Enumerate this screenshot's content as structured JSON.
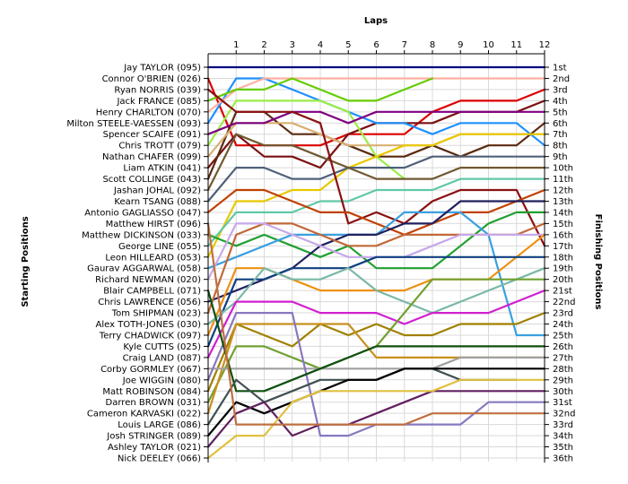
{
  "chart_data": {
    "type": "line",
    "title": "",
    "x_axis_title": "Laps",
    "left_axis_title": "Starting Positions",
    "right_axis_title": "Finishing Positions",
    "x": [
      1,
      2,
      3,
      4,
      5,
      6,
      7,
      8,
      9,
      10,
      11,
      12
    ],
    "x_range": [
      0,
      12
    ],
    "y_range": [
      1,
      36
    ],
    "y_inverted": true,
    "grid": true,
    "starting_names": [
      "Jay TAYLOR (095)",
      "Connor O'BRIEN (026)",
      "Ryan NORRIS (039)",
      "Jack FRANCE (085)",
      "Henry CHARLTON (070)",
      "Milton STEELE-VAESSEN (093)",
      "Spencer SCAIFE (091)",
      "Chris TROTT (079)",
      "Nathan CHAFER (099)",
      "Liam ATKIN (041)",
      "Scott COLLINGE (043)",
      "Jashan JOHAL (092)",
      "Kearn TSANG (088)",
      "Antonio GAGLIASSO (047)",
      "Matthew HIRST (096)",
      "Matthew DICKINSON (033)",
      "George LINE (055)",
      "Leon HILLEARD (053)",
      "Gaurav AGGARWAL (058)",
      "Richard NEWMAN (020)",
      "Blair CAMPBELL (071)",
      "Chris LAWRENCE (056)",
      "Tom SHIPMAN (023)",
      "Alex TOTH-JONES (030)",
      "Terry CHADWICK (097)",
      "Kyle CUTTS (025)",
      "Craig LAND (087)",
      "Corby GORMLEY (067)",
      "Joe WIGGIN (080)",
      "Matt ROBINSON (084)",
      "Darren BROWN (031)",
      "Cameron KARVASKI (022)",
      "Louis LARGE (086)",
      "Josh STRINGER (089)",
      "Ashley TAYLOR (021)",
      "Nick DEELEY (066)"
    ],
    "finishing_labels": [
      "1st",
      "2nd",
      "3rd",
      "4th",
      "5th",
      "6th",
      "7th",
      "8th",
      "9th",
      "10th",
      "11th",
      "12th",
      "13th",
      "14th",
      "15th",
      "16th",
      "17th",
      "18th",
      "19th",
      "20th",
      "21st",
      "22nd",
      "23rd",
      "24th",
      "25th",
      "26th",
      "27th",
      "28th",
      "29th",
      "30th",
      "31st",
      "32nd",
      "33rd",
      "34th",
      "35th",
      "36th"
    ],
    "series": [
      {
        "color": "#000080",
        "start": 1,
        "positions": [
          1,
          1,
          1,
          1,
          1,
          1,
          1,
          1,
          1,
          1,
          1,
          1
        ]
      },
      {
        "color": "#dc0000",
        "start": 2,
        "positions": [
          8,
          8,
          8,
          8,
          7,
          7,
          7,
          5,
          4,
          4,
          4,
          3
        ]
      },
      {
        "color": "#7a1010",
        "start": 10,
        "positions": [
          7,
          9,
          9,
          10,
          7,
          6,
          6,
          6,
          5,
          5,
          5,
          4
        ]
      },
      {
        "color": "#5a2a10",
        "start": 11,
        "positions": [
          5,
          5,
          7,
          7,
          8,
          9,
          9,
          8,
          9,
          8,
          8,
          6
        ]
      },
      {
        "color": "#1e90ff",
        "start": 6,
        "positions": [
          2,
          2,
          3,
          4,
          5,
          6,
          6,
          7,
          6,
          6,
          6,
          8
        ]
      },
      {
        "color": "#ffb0a0",
        "start": 5,
        "positions": [
          3,
          2,
          2,
          2,
          2,
          2,
          2,
          2,
          2,
          2,
          2,
          2
        ]
      },
      {
        "color": "#66cc00",
        "start": 4,
        "positions": [
          3,
          3,
          2,
          3,
          4,
          4,
          3,
          2,
          null,
          null,
          null,
          null
        ]
      },
      {
        "color": "#99ee44",
        "start": 8,
        "positions": [
          4,
          4,
          4,
          4,
          5,
          9,
          11,
          null,
          null,
          null,
          null,
          null
        ]
      },
      {
        "color": "#d8b070",
        "start": 9,
        "positions": [
          6,
          6,
          6,
          7,
          8,
          8,
          8,
          8,
          7,
          7,
          7,
          7
        ]
      },
      {
        "color": "#e8c800",
        "start": 18,
        "positions": [
          13,
          13,
          12,
          12,
          10,
          9,
          8,
          8,
          7,
          7,
          7,
          7
        ]
      },
      {
        "color": "#50607a",
        "start": 13,
        "positions": [
          10,
          10,
          11,
          11,
          10,
          10,
          10,
          9,
          9,
          9,
          9,
          9
        ]
      },
      {
        "color": "#800080",
        "start": 7,
        "positions": [
          6,
          6,
          5,
          5,
          6,
          5,
          5,
          5,
          5,
          5,
          5,
          5
        ]
      },
      {
        "color": "#705830",
        "start": 12,
        "positions": [
          7,
          8,
          8,
          9,
          10,
          11,
          11,
          11,
          10,
          10,
          10,
          10
        ]
      },
      {
        "color": "#60c8a8",
        "start": 17,
        "positions": [
          14,
          14,
          14,
          13,
          13,
          12,
          12,
          12,
          11,
          11,
          11,
          11
        ]
      },
      {
        "color": "#8a1010",
        "start": 3,
        "positions": [
          5,
          5,
          5,
          6,
          15,
          14,
          15,
          13,
          12,
          12,
          12,
          17
        ]
      },
      {
        "color": "#c04000",
        "start": 14,
        "positions": [
          12,
          12,
          13,
          14,
          14,
          15,
          16,
          15,
          14,
          14,
          13,
          12
        ]
      },
      {
        "color": "#20a030",
        "start": 16,
        "positions": [
          17,
          16,
          17,
          18,
          17,
          19,
          19,
          19,
          17,
          15,
          14,
          14
        ]
      },
      {
        "color": "#3aa0e0",
        "start": 19,
        "positions": [
          18,
          17,
          16,
          16,
          16,
          16,
          14,
          14,
          14,
          16,
          25,
          25
        ]
      },
      {
        "color": "#202060",
        "start": 22,
        "positions": [
          21,
          20,
          19,
          17,
          16,
          16,
          15,
          15,
          13,
          13,
          13,
          13
        ]
      },
      {
        "color": "#c06838",
        "start": 23,
        "positions": [
          16,
          15,
          15,
          16,
          17,
          17,
          16,
          16,
          16,
          16,
          16,
          15
        ]
      },
      {
        "color": "#c8a8e8",
        "start": 20,
        "positions": [
          15,
          15,
          16,
          17,
          18,
          18,
          18,
          17,
          16,
          16,
          16,
          16
        ]
      },
      {
        "color": "#ee9010",
        "start": 25,
        "positions": [
          19,
          19,
          20,
          21,
          21,
          21,
          21,
          20,
          20,
          20,
          18,
          16
        ]
      },
      {
        "color": "#104080",
        "start": 26,
        "positions": [
          20,
          20,
          19,
          19,
          19,
          18,
          18,
          18,
          18,
          18,
          18,
          18
        ]
      },
      {
        "color": "#7ab8a8",
        "start": 24,
        "positions": [
          22,
          19,
          20,
          20,
          19,
          21,
          22,
          23,
          22,
          21,
          20,
          19
        ]
      },
      {
        "color": "#d020d0",
        "start": 27,
        "positions": [
          22,
          22,
          22,
          23,
          23,
          23,
          24,
          23,
          23,
          23,
          22,
          21
        ]
      },
      {
        "color": "#70a030",
        "start": 31,
        "positions": [
          26,
          26,
          27,
          28,
          27,
          26,
          23,
          20,
          20,
          20,
          20,
          20
        ]
      },
      {
        "color": "#a08000",
        "start": 30,
        "positions": [
          24,
          25,
          26,
          24,
          25,
          24,
          25,
          25,
          24,
          24,
          24,
          23
        ]
      },
      {
        "color": "#c89020",
        "start": 32,
        "positions": [
          24,
          24,
          24,
          24,
          24,
          27,
          27,
          27,
          27,
          27,
          27,
          27
        ]
      },
      {
        "color": "#a0a0a0",
        "start": 28,
        "positions": [
          28,
          28,
          28,
          28,
          28,
          28,
          28,
          28,
          27,
          27,
          27,
          27
        ]
      },
      {
        "color": "#8878c0",
        "start": 29,
        "positions": [
          23,
          23,
          23,
          34,
          34,
          33,
          33,
          33,
          33,
          31,
          31,
          31
        ]
      },
      {
        "color": "#104f10",
        "start": 21,
        "positions": [
          30,
          30,
          29,
          28,
          27,
          26,
          26,
          26,
          26,
          26,
          26,
          26
        ]
      },
      {
        "color": "#405050",
        "start": 33,
        "positions": [
          29,
          31,
          30,
          29,
          29,
          29,
          28,
          28,
          29,
          29,
          29,
          null
        ]
      },
      {
        "color": "#000000",
        "start": 34,
        "positions": [
          31,
          32,
          31,
          30,
          29,
          29,
          28,
          28,
          28,
          28,
          28,
          28
        ]
      },
      {
        "color": "#602060",
        "start": 35,
        "positions": [
          32,
          31,
          34,
          33,
          33,
          32,
          31,
          30,
          30,
          30,
          30,
          30
        ]
      },
      {
        "color": "#e0c040",
        "start": 36,
        "positions": [
          34,
          34,
          31,
          30,
          30,
          30,
          30,
          30,
          29,
          29,
          29,
          29
        ]
      },
      {
        "color": "#c07040",
        "start": 15,
        "positions": [
          33,
          33,
          33,
          33,
          33,
          33,
          33,
          32,
          32,
          32,
          32,
          32
        ]
      }
    ]
  }
}
